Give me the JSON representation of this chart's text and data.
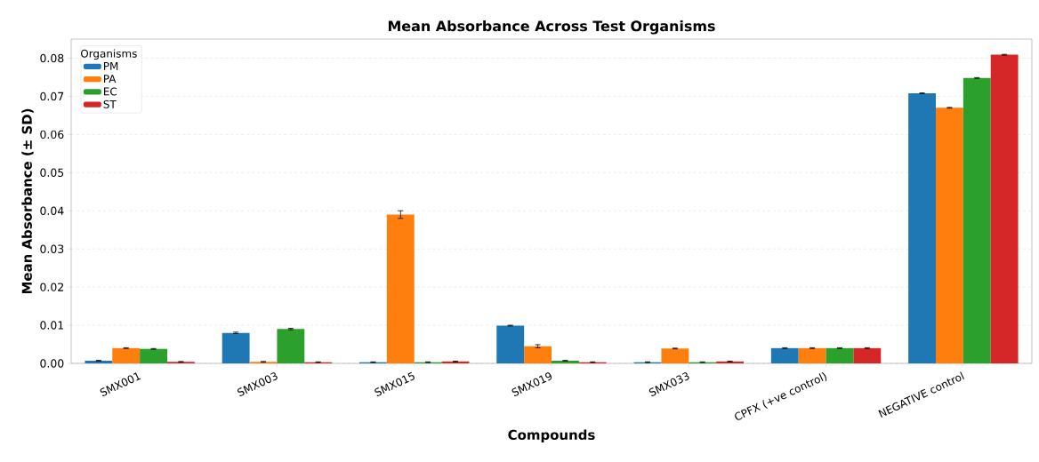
{
  "chart_data": {
    "type": "bar",
    "title": "Mean Absorbance Across Test Organisms",
    "xlabel": "Compounds",
    "ylabel": "Mean Absorbance (± SD)",
    "legend_title": "Organisms",
    "categories": [
      "SMX001",
      "SMX003",
      "SMX015",
      "SMX019",
      "SMX033",
      "CPFX (+ve control)",
      "NEGATIVE control"
    ],
    "series": [
      {
        "name": "PM",
        "color": "#1f77b4",
        "values": [
          0.0007,
          0.008,
          0.0003,
          0.0099,
          0.0003,
          0.004,
          0.0708
        ],
        "errors": [
          0.0001,
          0.0002,
          0.0001,
          0.0001,
          0.0001,
          0.0001,
          0.0001
        ]
      },
      {
        "name": "PA",
        "color": "#ff7f0e",
        "values": [
          0.004,
          0.0004,
          0.039,
          0.0045,
          0.0039,
          0.004,
          0.067
        ],
        "errors": [
          0.0001,
          0.0001,
          0.001,
          0.0004,
          0.0001,
          0.0001,
          0.0001
        ]
      },
      {
        "name": "EC",
        "color": "#2ca02c",
        "values": [
          0.0038,
          0.009,
          0.0003,
          0.0007,
          0.0003,
          0.004,
          0.0748
        ],
        "errors": [
          0.0001,
          0.0002,
          0.0001,
          0.0001,
          0.0001,
          0.0001,
          0.0001
        ]
      },
      {
        "name": "ST",
        "color": "#d62728",
        "values": [
          0.0004,
          0.0003,
          0.0005,
          0.0003,
          0.0005,
          0.004,
          0.0809
        ],
        "errors": [
          0.0001,
          0.0001,
          0.0001,
          0.0001,
          0.0001,
          0.0001,
          0.0001
        ]
      }
    ],
    "ylim": [
      0,
      0.085
    ],
    "yticks": [
      {
        "value": 0,
        "label": "0.00"
      },
      {
        "value": 0.01,
        "label": "0.01"
      },
      {
        "value": 0.02,
        "label": "0.02"
      },
      {
        "value": 0.03,
        "label": "0.03"
      },
      {
        "value": 0.04,
        "label": "0.04"
      },
      {
        "value": 0.05,
        "label": "0.05"
      },
      {
        "value": 0.06,
        "label": "0.06"
      },
      {
        "value": 0.07,
        "label": "0.07"
      },
      {
        "value": 0.08,
        "label": "0.08"
      }
    ],
    "grid": "y",
    "legend": "top left"
  }
}
